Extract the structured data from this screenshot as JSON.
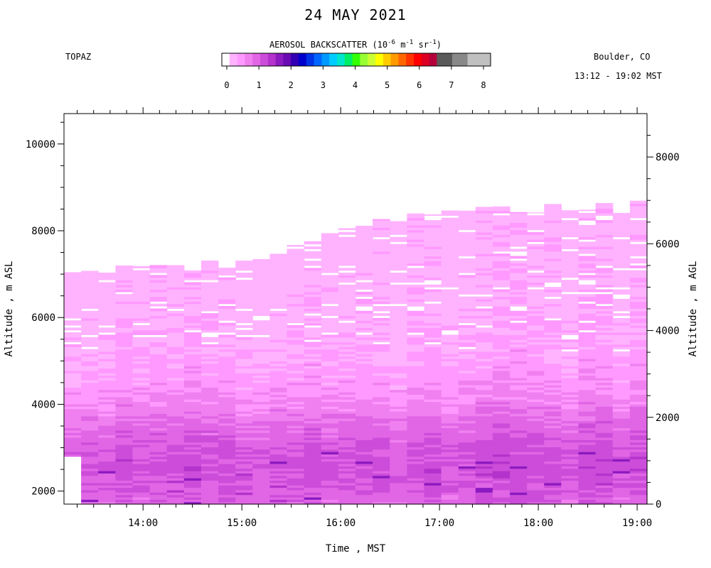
{
  "header": {
    "title": "24 MAY 2021",
    "instrument": "TOPAZ",
    "location": "Boulder, CO",
    "time_range": "13:12 - 19:02 MST"
  },
  "colorbar": {
    "title_prefix": "AEROSOL BACKSCATTER (10",
    "exp1": "-6",
    "mid": " m",
    "exp2": "-1",
    "mid2": " sr",
    "exp3": "-1",
    "suffix": ")",
    "ticks": [
      "0",
      "1",
      "2",
      "3",
      "4",
      "5",
      "6",
      "7",
      "8"
    ],
    "colors": [
      "#ffffff",
      "#ffb3ff",
      "#ff99ff",
      "#f080f0",
      "#e066e6",
      "#cc4dd9",
      "#b333cc",
      "#8c1ac0",
      "#6a0ab3",
      "#3300b3",
      "#0000cc",
      "#0033e6",
      "#0066ff",
      "#0099ff",
      "#00ccff",
      "#00e6cc",
      "#00ee66",
      "#33ff00",
      "#99ff33",
      "#ccff33",
      "#ffff00",
      "#ffcc00",
      "#ff9900",
      "#ff6600",
      "#ff3300",
      "#ff0000",
      "#dd0022",
      "#b3003a",
      "#5a5a5a",
      "#5a5a5a",
      "#888888",
      "#888888",
      "#c0c0c0",
      "#c0c0c0",
      "#c0c0c0"
    ]
  },
  "chart_data": {
    "type": "heatmap",
    "title": "24 MAY 2021",
    "variable": "AEROSOL BACKSCATTER (10-6 m-1 sr-1)",
    "xlabel": "Time , MST",
    "ylabel_left": "Altitude , m ASL",
    "ylabel_right": "Altitude , m AGL",
    "x_ticks": [
      "14:00",
      "15:00",
      "16:00",
      "17:00",
      "18:00",
      "19:00"
    ],
    "y_ticks_left": [
      "2000",
      "4000",
      "6000",
      "8000",
      "10000"
    ],
    "y_ticks_right": [
      "0",
      "2000",
      "4000",
      "6000",
      "8000"
    ],
    "xlim_hours": [
      13.2,
      19.1
    ],
    "ylim_asl_m": [
      1700,
      10700
    ],
    "colorbar_range": [
      0,
      8
    ],
    "layer_top_asl_m": {
      "times": [
        13.25,
        14.0,
        15.0,
        16.0,
        16.5,
        17.0,
        18.0,
        19.0
      ],
      "heights": [
        7000,
        7100,
        7300,
        8000,
        8300,
        8400,
        8500,
        8600
      ]
    },
    "profile_backscatter": {
      "heights_asl_m": [
        1700,
        2500,
        3000,
        3500,
        4000,
        4500,
        5000,
        6000,
        7000,
        8000,
        8600
      ],
      "values": [
        1.0,
        1.2,
        1.1,
        0.95,
        0.7,
        0.55,
        0.45,
        0.35,
        0.3,
        0.3,
        0.28
      ]
    },
    "missing_data_region": {
      "time_range": [
        13.2,
        13.35
      ],
      "asl_range_m": [
        1700,
        2800
      ]
    }
  }
}
